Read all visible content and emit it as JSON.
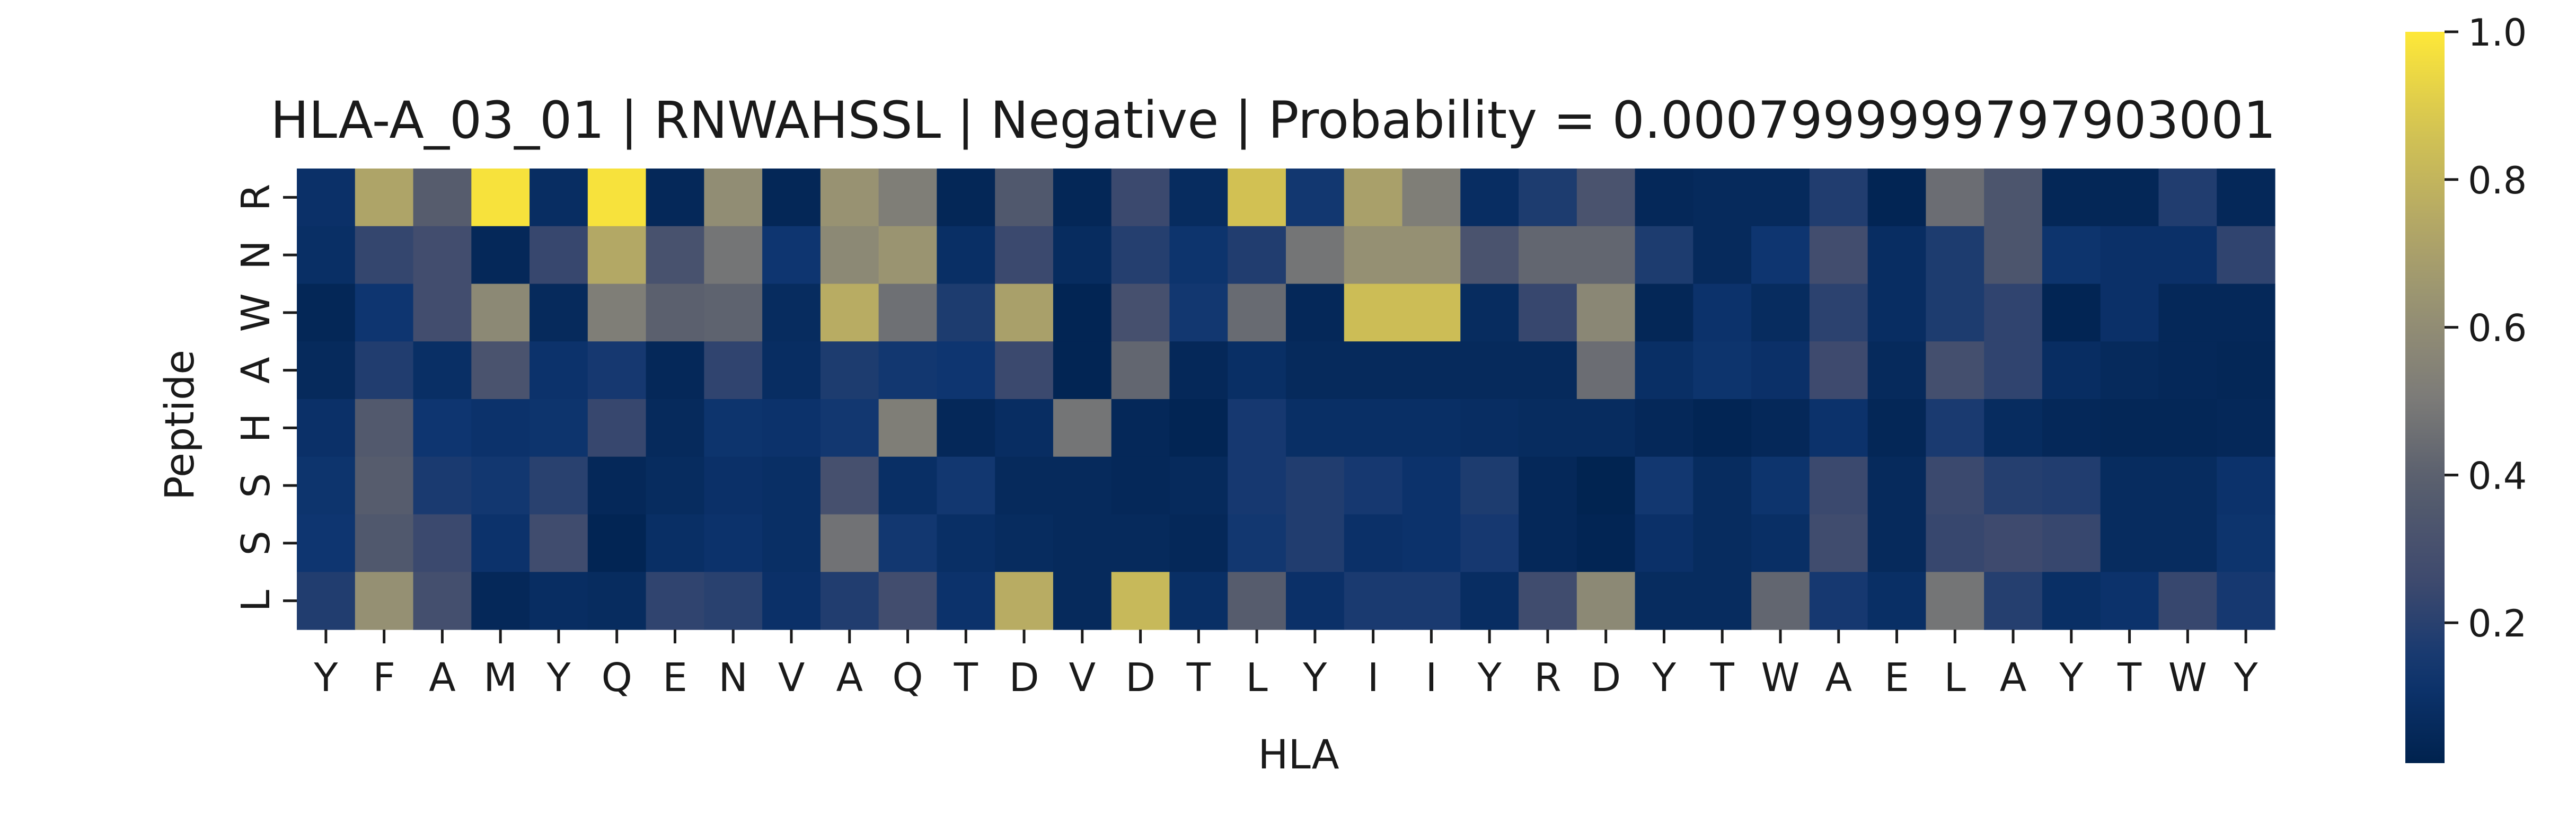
{
  "chart_data": {
    "type": "heatmap",
    "title": "HLA-A_03_01 | RNWAHSSL | Negative | Probability = 0.0007999999797903001",
    "xlabel": "HLA",
    "ylabel": "Peptide",
    "x_labels": [
      "Y",
      "F",
      "A",
      "M",
      "Y",
      "Q",
      "E",
      "N",
      "V",
      "A",
      "Q",
      "T",
      "D",
      "V",
      "D",
      "T",
      "L",
      "Y",
      "I",
      "I",
      "Y",
      "R",
      "D",
      "Y",
      "T",
      "W",
      "A",
      "E",
      "L",
      "A",
      "Y",
      "T",
      "W",
      "Y"
    ],
    "y_labels": [
      "R",
      "N",
      "W",
      "A",
      "H",
      "S",
      "S",
      "L"
    ],
    "colormap": "cividis",
    "colors": {
      "low": "#00224e",
      "mid": "#7c7b78",
      "high": "#fee838"
    },
    "value_range": [
      0.01,
      1.0
    ],
    "colorbar_ticks": [
      {
        "value": 0.2,
        "label": "0.2"
      },
      {
        "value": 0.4,
        "label": "0.4"
      },
      {
        "value": 0.6,
        "label": "0.6"
      },
      {
        "value": 0.8,
        "label": "0.8"
      },
      {
        "value": 1.0,
        "label": "1.0"
      }
    ],
    "values": [
      [
        0.1,
        0.72,
        0.38,
        0.98,
        0.08,
        0.98,
        0.05,
        0.6,
        0.04,
        0.63,
        0.52,
        0.04,
        0.35,
        0.04,
        0.25,
        0.07,
        0.86,
        0.14,
        0.7,
        0.52,
        0.08,
        0.17,
        0.32,
        0.05,
        0.06,
        0.06,
        0.18,
        0.03,
        0.45,
        0.33,
        0.04,
        0.04,
        0.18,
        0.05
      ],
      [
        0.09,
        0.23,
        0.28,
        0.05,
        0.24,
        0.74,
        0.31,
        0.48,
        0.13,
        0.58,
        0.64,
        0.09,
        0.25,
        0.07,
        0.19,
        0.12,
        0.18,
        0.48,
        0.62,
        0.62,
        0.32,
        0.42,
        0.42,
        0.17,
        0.06,
        0.13,
        0.28,
        0.08,
        0.17,
        0.33,
        0.12,
        0.1,
        0.1,
        0.22
      ],
      [
        0.04,
        0.13,
        0.28,
        0.58,
        0.06,
        0.52,
        0.4,
        0.41,
        0.07,
        0.76,
        0.46,
        0.17,
        0.7,
        0.03,
        0.3,
        0.14,
        0.44,
        0.05,
        0.84,
        0.84,
        0.07,
        0.24,
        0.57,
        0.04,
        0.11,
        0.07,
        0.21,
        0.08,
        0.17,
        0.22,
        0.03,
        0.1,
        0.05,
        0.05
      ],
      [
        0.06,
        0.18,
        0.09,
        0.32,
        0.11,
        0.15,
        0.05,
        0.22,
        0.08,
        0.17,
        0.14,
        0.13,
        0.25,
        0.03,
        0.42,
        0.05,
        0.09,
        0.06,
        0.06,
        0.06,
        0.06,
        0.06,
        0.45,
        0.09,
        0.12,
        0.1,
        0.26,
        0.06,
        0.29,
        0.22,
        0.08,
        0.06,
        0.05,
        0.04
      ],
      [
        0.1,
        0.36,
        0.13,
        0.11,
        0.12,
        0.24,
        0.06,
        0.12,
        0.11,
        0.14,
        0.52,
        0.05,
        0.08,
        0.48,
        0.05,
        0.03,
        0.15,
        0.09,
        0.09,
        0.09,
        0.08,
        0.07,
        0.07,
        0.05,
        0.03,
        0.05,
        0.11,
        0.04,
        0.16,
        0.07,
        0.05,
        0.04,
        0.04,
        0.05
      ],
      [
        0.12,
        0.38,
        0.16,
        0.14,
        0.2,
        0.05,
        0.07,
        0.1,
        0.09,
        0.3,
        0.09,
        0.14,
        0.06,
        0.06,
        0.05,
        0.06,
        0.15,
        0.18,
        0.15,
        0.11,
        0.17,
        0.05,
        0.02,
        0.14,
        0.07,
        0.12,
        0.25,
        0.06,
        0.25,
        0.19,
        0.18,
        0.07,
        0.07,
        0.11
      ],
      [
        0.13,
        0.35,
        0.25,
        0.11,
        0.27,
        0.03,
        0.09,
        0.11,
        0.09,
        0.47,
        0.14,
        0.09,
        0.07,
        0.06,
        0.06,
        0.05,
        0.14,
        0.18,
        0.1,
        0.11,
        0.15,
        0.05,
        0.03,
        0.1,
        0.07,
        0.09,
        0.27,
        0.06,
        0.24,
        0.26,
        0.24,
        0.07,
        0.07,
        0.12
      ],
      [
        0.18,
        0.62,
        0.29,
        0.05,
        0.08,
        0.07,
        0.22,
        0.2,
        0.1,
        0.18,
        0.28,
        0.11,
        0.76,
        0.06,
        0.82,
        0.09,
        0.38,
        0.1,
        0.16,
        0.16,
        0.08,
        0.27,
        0.58,
        0.07,
        0.07,
        0.42,
        0.15,
        0.09,
        0.48,
        0.19,
        0.09,
        0.11,
        0.24,
        0.15
      ]
    ]
  }
}
